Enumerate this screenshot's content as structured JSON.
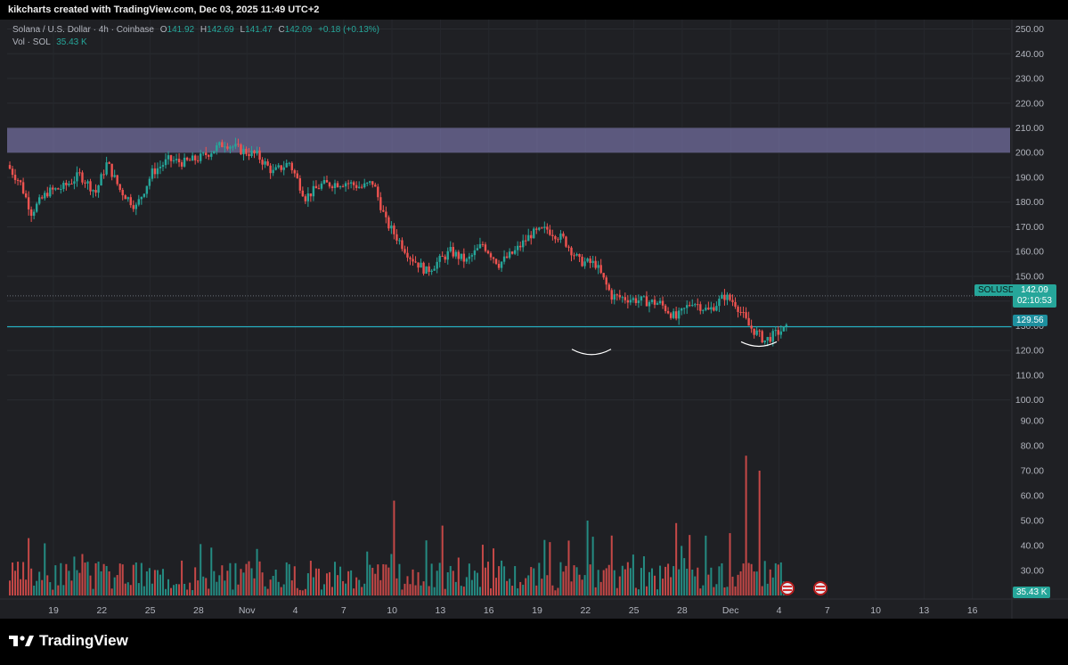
{
  "header": {
    "credit": "kikcharts created with TradingView.com, Dec 03, 2025 11:49 UTC+2"
  },
  "legend": {
    "symbol": "Solana / U.S. Dollar · 4h · Coinbase",
    "open_label": "O",
    "open": "141.92",
    "high_label": "H",
    "high": "142.69",
    "low_label": "L",
    "low": "141.47",
    "close_label": "C",
    "close": "142.09",
    "change": "+0.18 (+0.13%)",
    "vol_label": "Vol · SOL",
    "vol_value": "35.43 K"
  },
  "price_tag": {
    "symbol": "SOLUSD",
    "price": "142.09",
    "countdown": "02:10:53"
  },
  "level_tag": "129.56",
  "vol_tag": "35.43 K",
  "footer": {
    "brand": "TradingView"
  },
  "colors": {
    "up": "#26a69a",
    "down": "#ef5350",
    "zone": "#8e88c9",
    "level": "#26c6da",
    "bg": "#1f2024"
  },
  "icons": [
    "us-flag-icon",
    "us-flag-icon",
    "tradingview-logo-icon"
  ],
  "chart_data": {
    "type": "candlestick",
    "title": "Solana / U.S. Dollar · 4h · Coinbase",
    "y_ticks": [
      30,
      40,
      50,
      60,
      70,
      80,
      90,
      100,
      110,
      120,
      130,
      140,
      150,
      160,
      170,
      180,
      190,
      200,
      210,
      220,
      230,
      240,
      250
    ],
    "y_range": [
      20,
      252
    ],
    "x_ticks": [
      "19",
      "22",
      "25",
      "28",
      "Nov",
      "4",
      "7",
      "10",
      "13",
      "16",
      "19",
      "22",
      "25",
      "28",
      "Dec",
      "4",
      "7",
      "10",
      "13",
      "16"
    ],
    "zone": [
      200,
      210
    ],
    "level": 129.56,
    "last_price": 142.09,
    "close_path": [
      {
        "day": 0,
        "price": 195
      },
      {
        "day": 0.8,
        "price": 188
      },
      {
        "day": 1.5,
        "price": 176
      },
      {
        "day": 2.5,
        "price": 184
      },
      {
        "day": 3.5,
        "price": 186
      },
      {
        "day": 4.5,
        "price": 191
      },
      {
        "day": 5.5,
        "price": 184
      },
      {
        "day": 6.2,
        "price": 196
      },
      {
        "day": 7,
        "price": 185
      },
      {
        "day": 8,
        "price": 178
      },
      {
        "day": 9,
        "price": 192
      },
      {
        "day": 10,
        "price": 197
      },
      {
        "day": 11,
        "price": 196
      },
      {
        "day": 12,
        "price": 198
      },
      {
        "day": 13.5,
        "price": 204
      },
      {
        "day": 14.5,
        "price": 201
      },
      {
        "day": 15.5,
        "price": 199
      },
      {
        "day": 16.5,
        "price": 192
      },
      {
        "day": 17.5,
        "price": 196
      },
      {
        "day": 18.5,
        "price": 182
      },
      {
        "day": 19.5,
        "price": 187
      },
      {
        "day": 21,
        "price": 188
      },
      {
        "day": 22,
        "price": 186
      },
      {
        "day": 22.7,
        "price": 188
      },
      {
        "day": 23.5,
        "price": 172
      },
      {
        "day": 25,
        "price": 158
      },
      {
        "day": 26,
        "price": 152
      },
      {
        "day": 27.5,
        "price": 160
      },
      {
        "day": 28.5,
        "price": 156
      },
      {
        "day": 29.5,
        "price": 163
      },
      {
        "day": 30.5,
        "price": 155
      },
      {
        "day": 31.5,
        "price": 160
      },
      {
        "day": 32.5,
        "price": 167
      },
      {
        "day": 33.5,
        "price": 169
      },
      {
        "day": 34.5,
        "price": 165
      },
      {
        "day": 35.5,
        "price": 156
      },
      {
        "day": 36.5,
        "price": 155
      },
      {
        "day": 37.5,
        "price": 142
      },
      {
        "day": 38.5,
        "price": 141
      },
      {
        "day": 39.5,
        "price": 140
      },
      {
        "day": 40.5,
        "price": 139
      },
      {
        "day": 41.5,
        "price": 133
      },
      {
        "day": 42.5,
        "price": 140
      },
      {
        "day": 43.5,
        "price": 136
      },
      {
        "day": 44.5,
        "price": 142
      },
      {
        "day": 45.2,
        "price": 139
      },
      {
        "day": 46,
        "price": 130
      },
      {
        "day": 47,
        "price": 124
      },
      {
        "day": 48,
        "price": 128
      },
      {
        "day": 49,
        "price": 130
      },
      {
        "day": 50,
        "price": 134
      },
      {
        "day": 51,
        "price": 136
      },
      {
        "day": 52,
        "price": 138
      },
      {
        "day": 53.5,
        "price": 140
      },
      {
        "day": 54.5,
        "price": 143
      },
      {
        "day": 55.5,
        "price": 141
      },
      {
        "day": 56.5,
        "price": 138
      },
      {
        "day": 57.5,
        "price": 137
      },
      {
        "day": 58.5,
        "price": 138
      },
      {
        "day": 59.5,
        "price": 136
      },
      {
        "day": 60.2,
        "price": 127
      },
      {
        "day": 61,
        "price": 125
      },
      {
        "day": 61.8,
        "price": 128
      },
      {
        "day": 62.5,
        "price": 139
      },
      {
        "day": 63.5,
        "price": 142.09
      }
    ],
    "volume_ticks": [
      30,
      40,
      50,
      60,
      70,
      80
    ],
    "volume_peaks": [
      {
        "day": 24,
        "vol": 58
      },
      {
        "day": 45.8,
        "vol": 76
      },
      {
        "day": 46.6,
        "vol": 70
      },
      {
        "day": 60.6,
        "vol": 53
      },
      {
        "day": 37.5,
        "vol": 44
      },
      {
        "day": 36,
        "vol": 50
      },
      {
        "day": 41.5,
        "vol": 49
      },
      {
        "day": 27,
        "vol": 48
      }
    ],
    "last_volume": 35.43
  }
}
